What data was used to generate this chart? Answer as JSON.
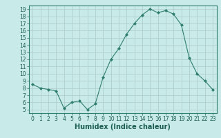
{
  "x": [
    0,
    1,
    2,
    3,
    4,
    5,
    6,
    7,
    8,
    9,
    10,
    11,
    12,
    13,
    14,
    15,
    16,
    17,
    18,
    19,
    20,
    21,
    22,
    23
  ],
  "y": [
    8.5,
    8.0,
    7.8,
    7.6,
    5.2,
    6.0,
    6.2,
    5.0,
    5.8,
    9.5,
    12.0,
    13.5,
    15.5,
    17.0,
    18.2,
    19.0,
    18.5,
    18.8,
    18.3,
    16.8,
    12.2,
    10.0,
    9.0,
    7.8
  ],
  "line_color": "#2e7d6e",
  "marker": "D",
  "marker_size": 2,
  "bg_color": "#c8eae8",
  "grid_color": "#aecfcc",
  "xlabel": "Humidex (Indice chaleur)",
  "ylim": [
    4.5,
    19.5
  ],
  "xlim": [
    -0.5,
    23.5
  ],
  "yticks": [
    5,
    6,
    7,
    8,
    9,
    10,
    11,
    12,
    13,
    14,
    15,
    16,
    17,
    18,
    19
  ],
  "xticks": [
    0,
    1,
    2,
    3,
    4,
    5,
    6,
    7,
    8,
    9,
    10,
    11,
    12,
    13,
    14,
    15,
    16,
    17,
    18,
    19,
    20,
    21,
    22,
    23
  ],
  "tick_fontsize": 5.5,
  "label_fontsize": 7,
  "label_color": "#1a5c52",
  "tick_color": "#1a5c52",
  "axis_color": "#2e7d6e"
}
